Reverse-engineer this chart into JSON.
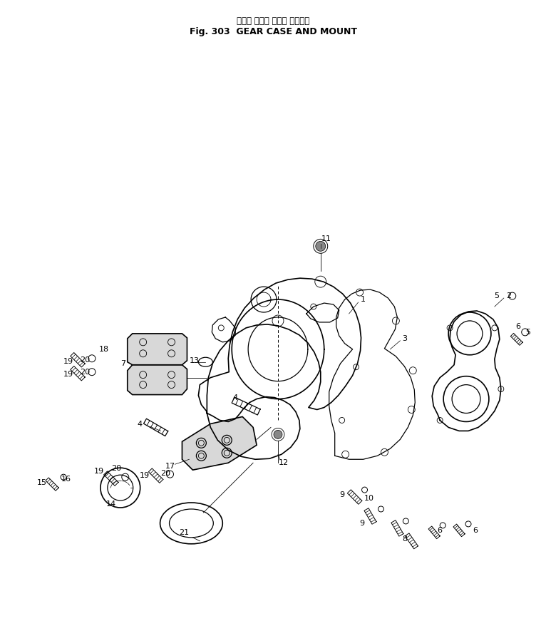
{
  "title_japanese": "ギヤー ケース および マウント",
  "title_english": "Fig. 303  GEAR CASE AND MOUNT",
  "bg_color": "#ffffff",
  "line_color": "#000000",
  "fig_width": 7.66,
  "fig_height": 8.71,
  "dpi": 100
}
